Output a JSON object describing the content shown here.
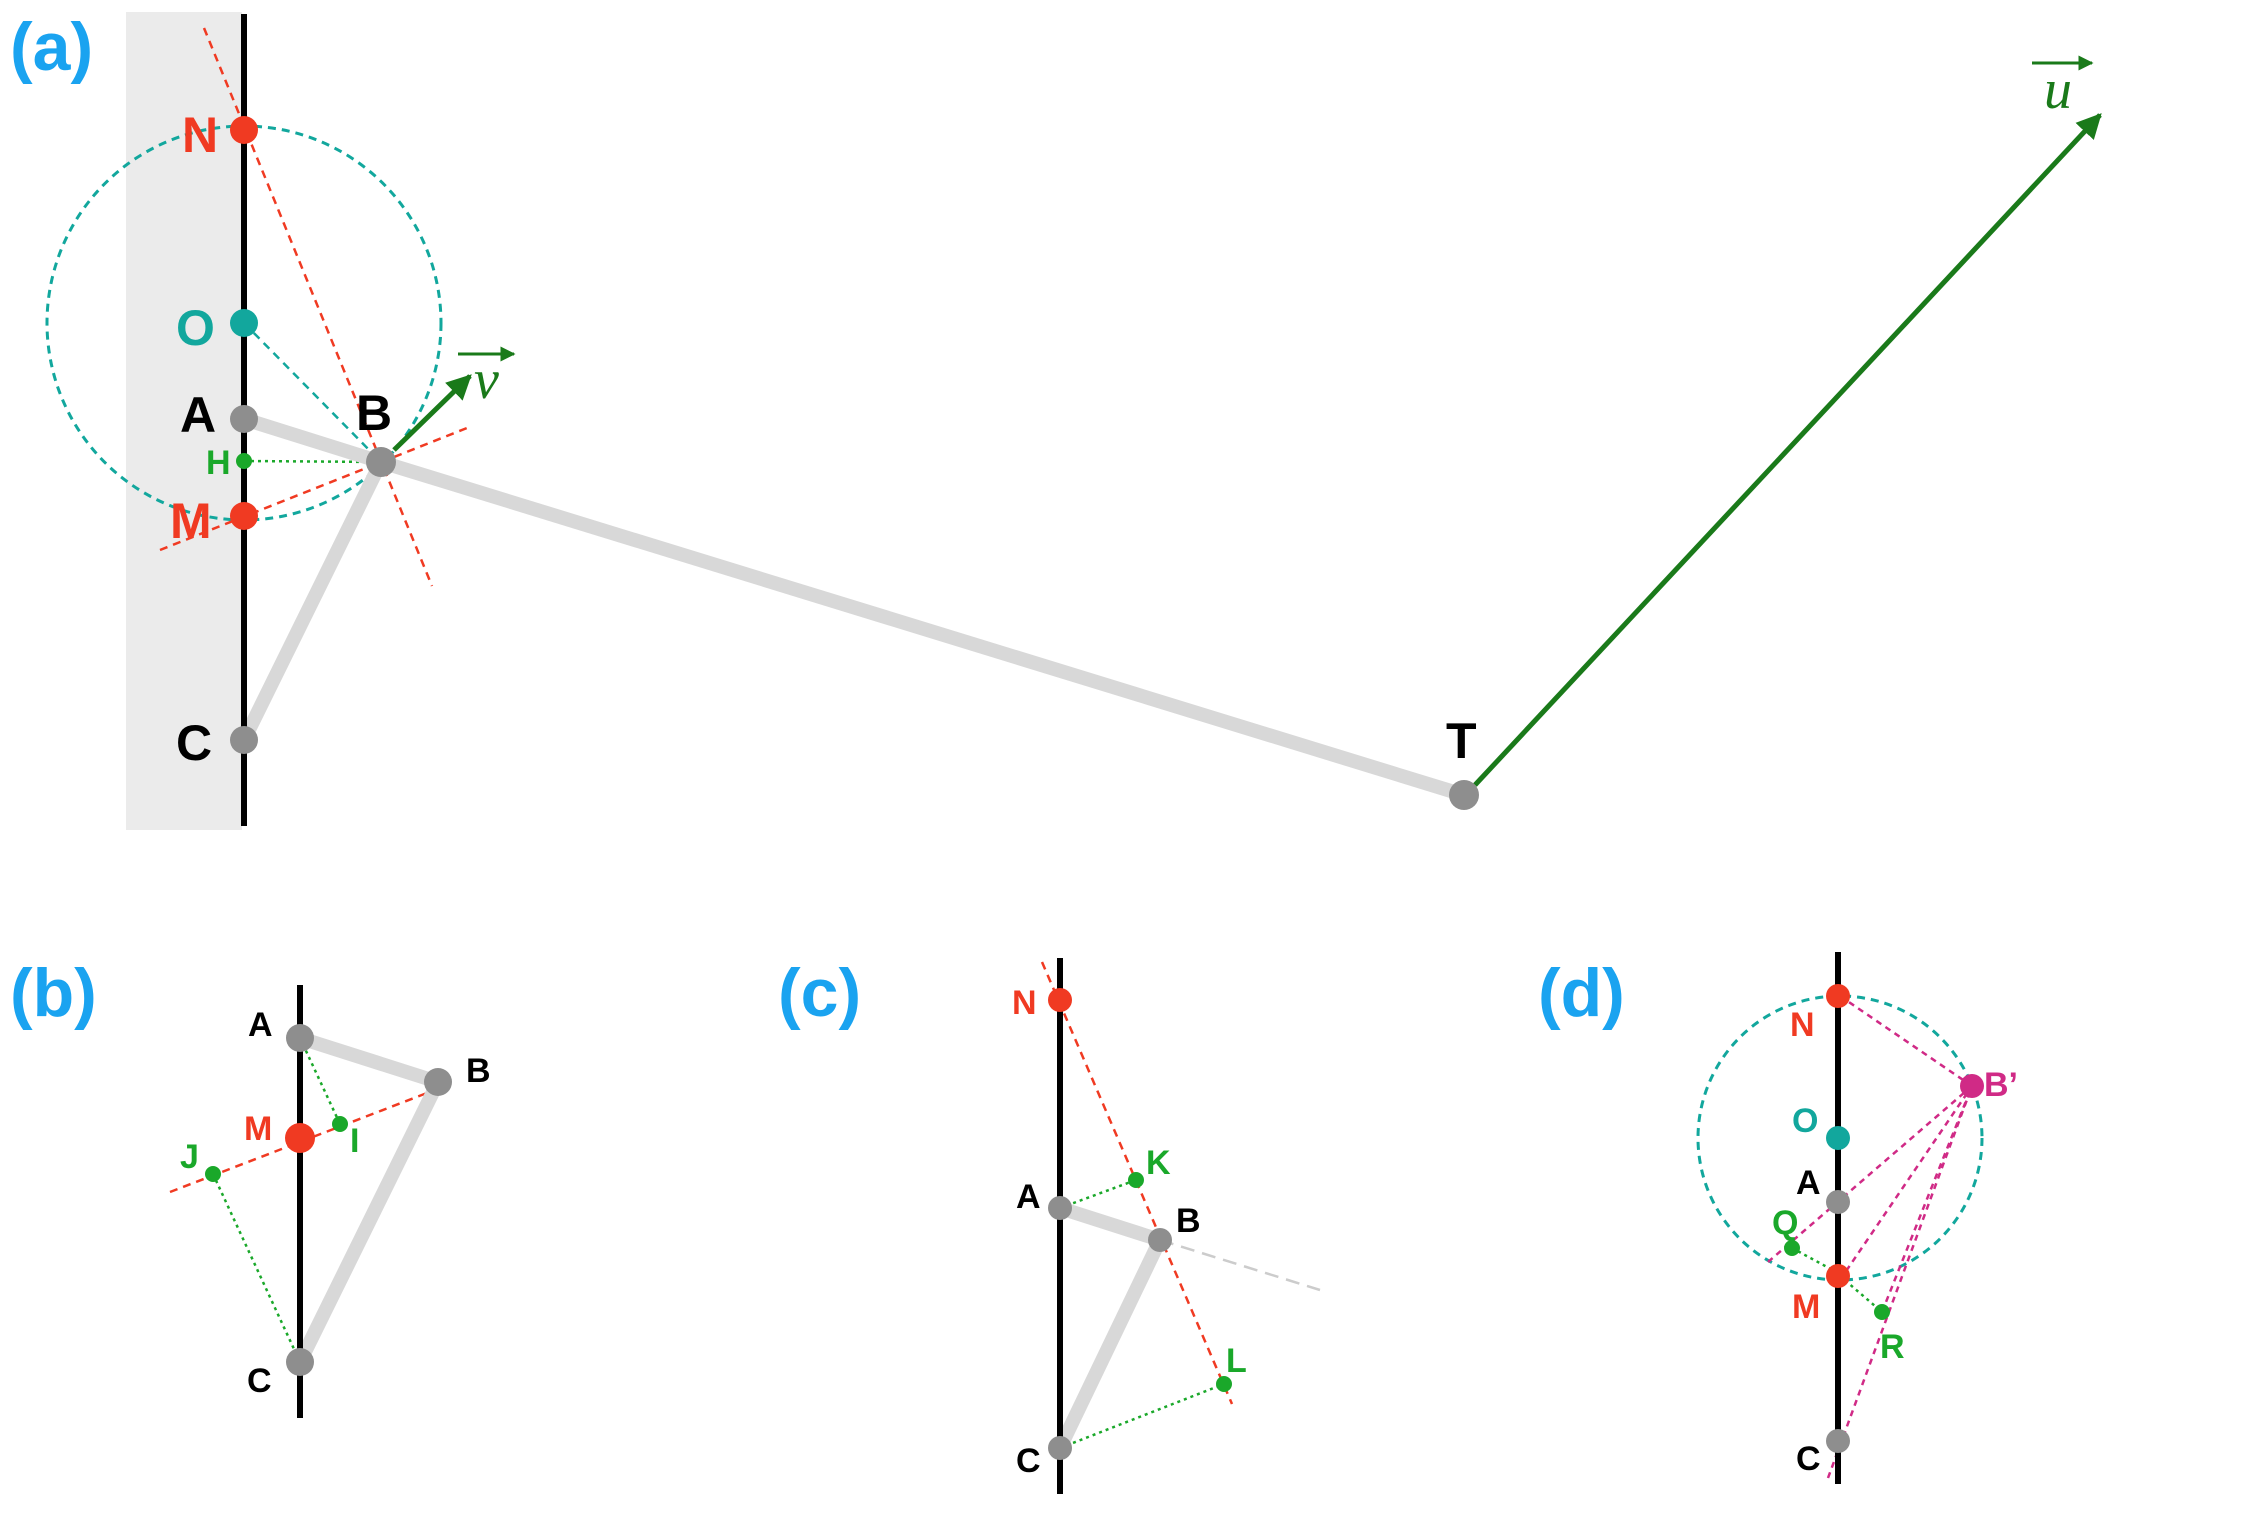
{
  "colors": {
    "panel_label": "#1aa3f0",
    "red": "#f03a22",
    "teal": "#12a79d",
    "green": "#1aa82a",
    "dark_green": "#1a7a1a",
    "gray": "#8e8e8e",
    "light_gray": "#d8d8d8",
    "magenta": "#d02a86",
    "black": "#000000",
    "wall_shade": "#ebebeb"
  },
  "panels": {
    "a": {
      "label": "(a)",
      "points": {
        "N": "N",
        "O": "O",
        "A": "A",
        "B": "B",
        "H": "H",
        "M": "M",
        "C": "C",
        "T": "T"
      },
      "vectors": {
        "v": "v",
        "u": "u"
      }
    },
    "b": {
      "label": "(b)",
      "points": {
        "A": "A",
        "B": "B",
        "M": "M",
        "I": "I",
        "J": "J",
        "C": "C"
      }
    },
    "c": {
      "label": "(c)",
      "points": {
        "N": "N",
        "K": "K",
        "A": "A",
        "B": "B",
        "L": "L",
        "C": "C"
      }
    },
    "d": {
      "label": "(d)",
      "points": {
        "N": "N",
        "B_prime": "B’",
        "O": "O",
        "A": "A",
        "Q": "Q",
        "M": "M",
        "R": "R",
        "C": "C"
      }
    }
  }
}
